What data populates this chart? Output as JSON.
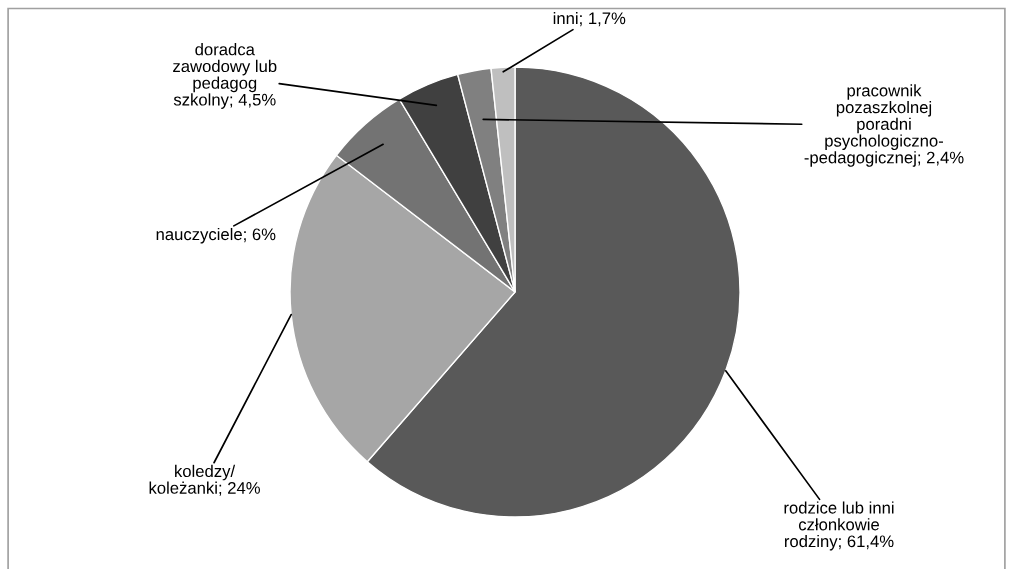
{
  "chart_data": {
    "type": "pie",
    "categories": [
      "rodzice lub inni\nczłonkowie\nrodziny",
      "koledzy/\nkoleżanki",
      "nauczyciele",
      "doradca\nzawodowy lub\npedagog\nszkolny",
      "pracownik\npozaszkolnej\nporadni\npsychologiczno-\n-pedagogicznej",
      "inni"
    ],
    "values": [
      61.4,
      24,
      6,
      4.5,
      2.4,
      1.7
    ],
    "colors": [
      "#595959",
      "#a6a6a6",
      "#737373",
      "#404040",
      "#808080",
      "#bfbfbf"
    ],
    "value_labels": [
      "61,4%",
      "24%",
      "6%",
      "4,5%",
      "2,4%",
      "1,7%"
    ]
  }
}
